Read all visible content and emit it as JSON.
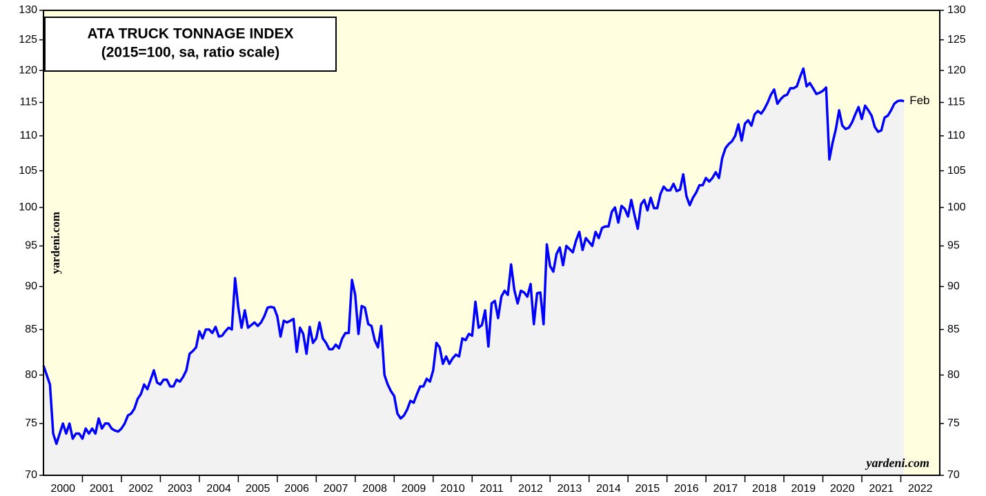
{
  "chart_data": {
    "type": "line",
    "title": "ATA TRUCK TONNAGE INDEX",
    "subtitle": "(2015=100, sa, ratio scale)",
    "annotations": [
      "Feb",
      "yardeni.com",
      "yardeni.com"
    ],
    "log_scale": true,
    "color": "#0000ff",
    "area_color": "#f2f2f2",
    "background": "#ffffe0",
    "categories": [
      "2000",
      "2001",
      "2002",
      "2003",
      "2004",
      "2005",
      "2006",
      "2007",
      "2008",
      "2009",
      "2010",
      "2011",
      "2012",
      "2013",
      "2014",
      "2015",
      "2016",
      "2017",
      "2018",
      "2019",
      "2020",
      "2021",
      "2022"
    ],
    "values": [
      [
        81,
        80,
        79,
        74,
        73,
        74,
        75,
        74,
        75,
        73.5,
        74,
        74
      ],
      [
        73.5,
        74.5,
        74,
        74.5,
        74,
        75.5,
        74.5,
        75,
        75,
        74.5,
        74.3,
        74.2
      ],
      [
        74.5,
        75,
        75.8,
        76,
        76.5,
        77.5,
        78,
        79,
        78.5,
        79.5,
        80.5,
        79.2
      ],
      [
        79,
        79.5,
        79.5,
        78.8,
        78.8,
        79.5,
        79.3,
        79.8,
        80.5,
        82.3,
        82.6,
        83
      ],
      [
        84.8,
        84,
        85,
        85,
        84.6,
        85.3,
        84.2,
        84.3,
        84.8,
        85.2,
        85,
        91
      ],
      [
        87.5,
        85.2,
        87.2,
        85.2,
        85.5,
        85.8,
        85.4,
        85.8,
        86.5,
        87.5,
        87.6,
        87.5
      ],
      [
        86.5,
        84.2,
        86,
        85.8,
        86,
        86.2,
        82.5,
        85.2,
        84.5,
        82.3,
        85.3,
        83.5
      ],
      [
        84,
        85.8,
        84,
        83.5,
        82.8,
        82.8,
        83.3,
        82.9,
        84,
        84.6,
        84.6,
        90.8
      ],
      [
        89,
        84.5,
        87.7,
        87.5,
        85.6,
        85.4,
        83.8,
        83,
        85.4,
        80,
        79,
        78.3
      ],
      [
        77.8,
        76,
        75.5,
        75.8,
        76.4,
        77.3,
        77.1,
        78,
        78.8,
        78.8,
        79.6,
        79.3
      ],
      [
        80.5,
        83.5,
        83,
        81.2,
        82,
        81.2,
        81.8,
        82.2,
        82,
        84,
        83.8,
        84.5
      ],
      [
        84.3,
        88.2,
        85.2,
        85.5,
        87.2,
        83.1,
        88,
        88.3,
        86.3,
        88.8,
        89.5,
        89
      ],
      [
        92.7,
        89.6,
        88,
        89.5,
        89.3,
        88.8,
        90.3,
        85.6,
        89.2,
        89.3,
        85.6,
        95.2
      ],
      [
        92.5,
        91.8,
        94,
        94.8,
        92.6,
        95,
        94.6,
        94.2,
        95.7,
        96.8,
        94.5,
        96
      ],
      [
        95.5,
        95,
        96.8,
        96,
        97.3,
        97.5,
        97.5,
        99.4,
        100,
        98,
        100.2,
        99.8
      ],
      [
        98.8,
        101,
        99,
        97.2,
        100.4,
        101,
        99.6,
        101.3,
        99.9,
        99.9,
        101.8,
        102.8
      ],
      [
        102.3,
        102.3,
        103.2,
        102.2,
        102.4,
        104.5,
        101.5,
        100.3,
        101.3,
        102,
        103,
        103
      ],
      [
        104,
        103.5,
        104,
        104.8,
        104,
        106.8,
        108.2,
        108.8,
        109.2,
        110,
        111.7,
        109.3
      ],
      [
        111.8,
        112.3,
        111.5,
        113.2,
        113.7,
        113.3,
        114,
        115,
        116.2,
        117,
        114.8,
        115.5
      ],
      [
        116,
        116.2,
        117.2,
        117.2,
        117.5,
        119,
        120.3,
        117.5,
        118,
        117.2,
        116.3,
        116.5
      ],
      [
        116.8,
        117.3,
        106.6,
        109,
        111,
        113.8,
        111.5,
        111,
        111.2,
        112,
        113.2,
        114.3
      ],
      [
        112.5,
        114.5,
        113.8,
        113,
        111.3,
        110.6,
        110.8,
        112.7,
        113,
        113.8,
        114.8,
        115.2
      ],
      [
        115.3,
        115.2
      ]
    ],
    "ylim": [
      70,
      130
    ],
    "yticks": [
      70,
      75,
      80,
      85,
      90,
      95,
      100,
      105,
      110,
      115,
      120,
      125,
      130
    ]
  }
}
